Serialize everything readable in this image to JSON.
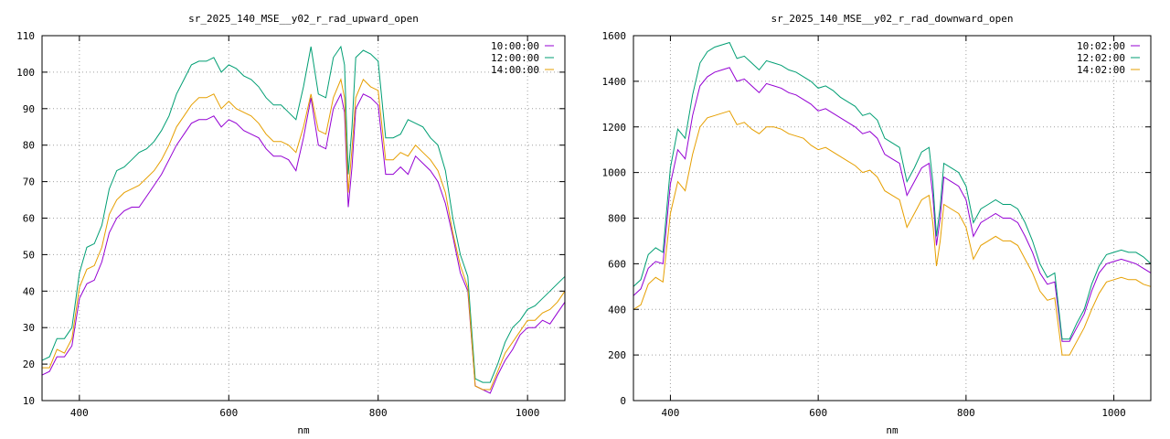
{
  "chart_data": [
    {
      "type": "line",
      "title": "sr_2025_140_MSE__y02_r_rad_upward_open",
      "xlabel": "nm",
      "ylabel": "",
      "xlim": [
        350,
        1050
      ],
      "ylim": [
        10,
        110
      ],
      "xticks": [
        400,
        600,
        800,
        1000
      ],
      "yticks": [
        10,
        20,
        30,
        40,
        50,
        60,
        70,
        80,
        90,
        100,
        110
      ],
      "grid": true,
      "legend_position": "top-right",
      "x": [
        350,
        360,
        370,
        380,
        390,
        400,
        410,
        420,
        430,
        440,
        450,
        460,
        470,
        480,
        490,
        500,
        510,
        520,
        530,
        540,
        550,
        560,
        570,
        580,
        590,
        600,
        610,
        620,
        630,
        640,
        650,
        660,
        670,
        680,
        690,
        700,
        710,
        720,
        730,
        740,
        750,
        755,
        760,
        765,
        770,
        780,
        790,
        800,
        810,
        820,
        830,
        840,
        850,
        860,
        870,
        880,
        890,
        900,
        910,
        920,
        930,
        940,
        950,
        960,
        970,
        980,
        990,
        1000,
        1010,
        1020,
        1030,
        1040,
        1050
      ],
      "series": [
        {
          "name": "10:00:00",
          "color": "#9400d3",
          "values": [
            17,
            18,
            22,
            22,
            25,
            38,
            42,
            43,
            48,
            56,
            60,
            62,
            63,
            63,
            66,
            69,
            72,
            76,
            80,
            83,
            86,
            87,
            87,
            88,
            85,
            87,
            86,
            84,
            83,
            82,
            79,
            77,
            77,
            76,
            73,
            82,
            93,
            80,
            79,
            90,
            94,
            89,
            63,
            74,
            90,
            94,
            93,
            91,
            72,
            72,
            74,
            72,
            77,
            75,
            73,
            70,
            64,
            55,
            45,
            40,
            14,
            13,
            12,
            17,
            21,
            24,
            28,
            30,
            30,
            32,
            31,
            34,
            37
          ]
        },
        {
          "name": "12:00:00",
          "color": "#009e73",
          "values": [
            21,
            22,
            27,
            27,
            30,
            45,
            52,
            53,
            58,
            68,
            73,
            74,
            76,
            78,
            79,
            81,
            84,
            88,
            94,
            98,
            102,
            103,
            103,
            104,
            100,
            102,
            101,
            99,
            98,
            96,
            93,
            91,
            91,
            89,
            87,
            96,
            107,
            94,
            93,
            104,
            107,
            102,
            72,
            85,
            104,
            106,
            105,
            103,
            82,
            82,
            83,
            87,
            86,
            85,
            82,
            80,
            73,
            60,
            50,
            44,
            16,
            15,
            15,
            20,
            26,
            30,
            32,
            35,
            36,
            38,
            40,
            42,
            44
          ]
        },
        {
          "name": "14:00:00",
          "color": "#e69f00",
          "values": [
            19,
            19,
            24,
            23,
            27,
            41,
            46,
            47,
            52,
            61,
            65,
            67,
            68,
            69,
            71,
            73,
            76,
            80,
            85,
            88,
            91,
            93,
            93,
            94,
            90,
            92,
            90,
            89,
            88,
            86,
            83,
            81,
            81,
            80,
            78,
            85,
            94,
            84,
            83,
            93,
            98,
            93,
            67,
            79,
            93,
            98,
            96,
            95,
            76,
            76,
            78,
            77,
            80,
            78,
            76,
            73,
            67,
            56,
            47,
            41,
            14,
            13,
            13,
            18,
            23,
            26,
            29,
            32,
            32,
            34,
            35,
            37,
            40
          ]
        }
      ]
    },
    {
      "type": "line",
      "title": "sr_2025_140_MSE__y02_r_rad_downward_open",
      "xlabel": "nm",
      "ylabel": "",
      "xlim": [
        350,
        1050
      ],
      "ylim": [
        0,
        1600
      ],
      "xticks": [
        400,
        600,
        800,
        1000
      ],
      "yticks": [
        0,
        200,
        400,
        600,
        800,
        1000,
        1200,
        1400,
        1600
      ],
      "grid": true,
      "legend_position": "top-right",
      "x": [
        350,
        360,
        370,
        380,
        390,
        400,
        410,
        420,
        430,
        440,
        450,
        460,
        470,
        480,
        490,
        500,
        510,
        520,
        530,
        540,
        550,
        560,
        570,
        580,
        590,
        600,
        610,
        620,
        630,
        640,
        650,
        660,
        670,
        680,
        690,
        700,
        710,
        720,
        730,
        740,
        750,
        755,
        760,
        765,
        770,
        780,
        790,
        800,
        810,
        820,
        830,
        840,
        850,
        860,
        870,
        880,
        890,
        900,
        910,
        920,
        930,
        940,
        950,
        960,
        970,
        980,
        990,
        1000,
        1010,
        1020,
        1030,
        1040,
        1050
      ],
      "series": [
        {
          "name": "10:02:00",
          "color": "#9400d3",
          "values": [
            460,
            490,
            580,
            610,
            600,
            950,
            1100,
            1060,
            1250,
            1380,
            1420,
            1440,
            1450,
            1460,
            1400,
            1410,
            1380,
            1350,
            1390,
            1380,
            1370,
            1350,
            1340,
            1320,
            1300,
            1270,
            1280,
            1260,
            1240,
            1220,
            1200,
            1170,
            1180,
            1150,
            1080,
            1060,
            1040,
            900,
            960,
            1020,
            1040,
            900,
            680,
            800,
            980,
            960,
            940,
            880,
            720,
            780,
            800,
            820,
            800,
            800,
            780,
            720,
            650,
            560,
            510,
            520,
            260,
            260,
            320,
            380,
            480,
            560,
            600,
            610,
            620,
            610,
            600,
            580,
            560
          ]
        },
        {
          "name": "12:02:00",
          "color": "#009e73",
          "values": [
            500,
            530,
            640,
            670,
            650,
            1020,
            1190,
            1150,
            1340,
            1480,
            1530,
            1550,
            1560,
            1570,
            1500,
            1510,
            1480,
            1450,
            1490,
            1480,
            1470,
            1450,
            1440,
            1420,
            1400,
            1370,
            1380,
            1360,
            1330,
            1310,
            1290,
            1250,
            1260,
            1230,
            1150,
            1130,
            1110,
            960,
            1020,
            1090,
            1110,
            960,
            720,
            850,
            1040,
            1020,
            1000,
            940,
            780,
            840,
            860,
            880,
            860,
            860,
            840,
            780,
            700,
            600,
            540,
            560,
            270,
            270,
            340,
            400,
            510,
            590,
            640,
            650,
            660,
            650,
            650,
            630,
            600
          ]
        },
        {
          "name": "14:02:00",
          "color": "#e69f00",
          "values": [
            400,
            420,
            510,
            540,
            520,
            820,
            960,
            920,
            1080,
            1200,
            1240,
            1250,
            1260,
            1270,
            1210,
            1220,
            1190,
            1170,
            1200,
            1200,
            1190,
            1170,
            1160,
            1150,
            1120,
            1100,
            1110,
            1090,
            1070,
            1050,
            1030,
            1000,
            1010,
            980,
            920,
            900,
            880,
            760,
            820,
            880,
            900,
            780,
            590,
            700,
            860,
            840,
            820,
            760,
            620,
            680,
            700,
            720,
            700,
            700,
            680,
            620,
            560,
            480,
            440,
            450,
            200,
            200,
            260,
            320,
            400,
            470,
            520,
            530,
            540,
            530,
            530,
            510,
            500
          ]
        }
      ]
    }
  ]
}
